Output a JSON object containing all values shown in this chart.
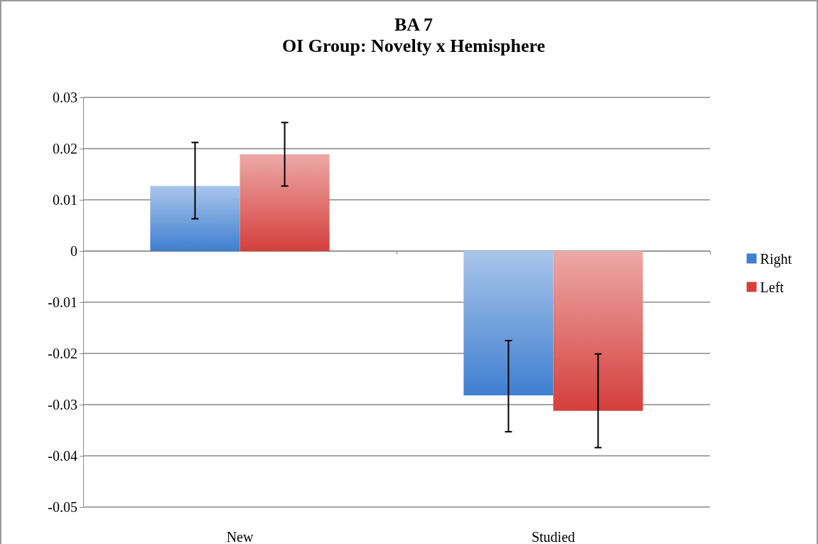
{
  "chart_data": {
    "type": "bar",
    "title": "BA 7",
    "subtitle": "OI Group: Novelty x Hemisphere",
    "categories": [
      "New",
      "Studied"
    ],
    "series": [
      {
        "name": "Right",
        "color": "#3f7fd0",
        "values": [
          0.0127,
          -0.0282
        ],
        "errors": [
          [
            0.0063,
            0.0212
          ],
          [
            -0.0353,
            -0.0175
          ]
        ]
      },
      {
        "name": "Left",
        "color": "#d43f3c",
        "values": [
          0.0189,
          -0.0312
        ],
        "errors": [
          [
            0.0127,
            0.0251
          ],
          [
            -0.0384,
            -0.0201
          ]
        ]
      }
    ],
    "ylim": [
      -0.05,
      0.03
    ],
    "yticks": [
      -0.05,
      -0.04,
      -0.03,
      -0.02,
      -0.01,
      0,
      0.01,
      0.02,
      0.03
    ],
    "grid": "y",
    "legend": "right"
  }
}
